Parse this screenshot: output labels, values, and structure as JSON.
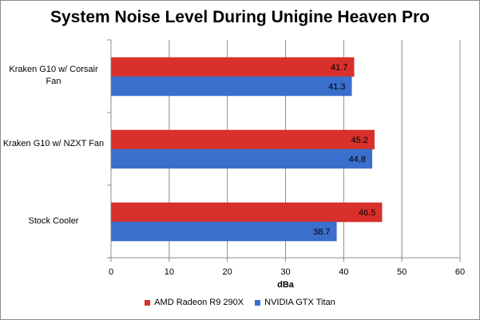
{
  "chart_data": {
    "type": "bar",
    "orientation": "horizontal",
    "title": "System Noise Level During Unigine Heaven Pro",
    "xlabel": "dBa",
    "ylabel": "",
    "categories": [
      "Kraken G10 w/ Corsair Fan",
      "Kraken G10 w/ NZXT Fan",
      "Stock Cooler"
    ],
    "series": [
      {
        "name": "AMD Radeon R9 290X",
        "color": "#d9302c",
        "values": [
          41.7,
          45.2,
          46.5
        ]
      },
      {
        "name": "NVIDIA GTX Titan",
        "color": "#3a6fcc",
        "values": [
          41.3,
          44.8,
          38.7
        ]
      }
    ],
    "xlim": [
      0,
      60
    ],
    "xticks": [
      0,
      10,
      20,
      30,
      40,
      50,
      60
    ],
    "grid": true,
    "legend": "bottom"
  }
}
